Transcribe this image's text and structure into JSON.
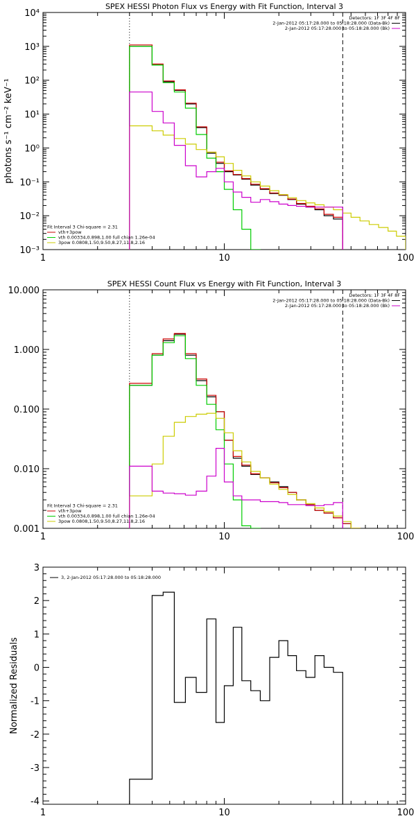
{
  "chart_data": [
    {
      "type": "line",
      "title": "SPEX HESSI Photon Flux vs Energy with Fit Function, Interval 3",
      "ylabel": "photons s⁻¹ cm⁻² keV⁻¹",
      "xlabel": "",
      "xscale": "log",
      "yscale": "log",
      "xlim": [
        1,
        100
      ],
      "ylim": [
        0.001,
        10000
      ],
      "x_ticks": [
        {
          "v": 1,
          "label": "1"
        },
        {
          "v": 10,
          "label": "10"
        },
        {
          "v": 100,
          "label": "100"
        }
      ],
      "y_ticks": [
        {
          "v": 0.001,
          "label": "10⁻³"
        },
        {
          "v": 0.01,
          "label": "10⁻²"
        },
        {
          "v": 0.1,
          "label": "10⁻¹"
        },
        {
          "v": 1,
          "label": "10⁰"
        },
        {
          "v": 10,
          "label": "10¹"
        },
        {
          "v": 100,
          "label": "10²"
        },
        {
          "v": 1000,
          "label": "10³"
        },
        {
          "v": 10000,
          "label": "10⁴"
        }
      ],
      "vlines": [
        {
          "x": 3.0,
          "style": "dotted"
        },
        {
          "x": 45,
          "style": "dashed"
        }
      ],
      "legend_topright": [
        {
          "text": "Detectors: 1F 3F 4F 8F",
          "color": ""
        },
        {
          "text": "2-Jan-2012 05:17:28.000 to 05:18:28.000 (Data-Bk)",
          "color": "#000000"
        },
        {
          "text": "2-Jan-2012 05:17:28.000 to 05:18:28.000 (Bk)",
          "color": "#cc00cc"
        }
      ],
      "legend_bottomleft": [
        {
          "text": "Fit Interval 3   Chi-square = 2.31",
          "color": ""
        },
        {
          "text": "vth+3pow",
          "color": "#cc0000"
        },
        {
          "text": "vth 0.00334,0.898,1.00   full chian 1.26e-04",
          "color": "#00cc00"
        },
        {
          "text": "3pow 0.0808,1.50,9.50,8.27,11.8,2.16",
          "color": "#cccc00"
        }
      ],
      "series": [
        {
          "color": "#000000",
          "edges": [
            3.0,
            3.4,
            4.0,
            4.6,
            5.3,
            6.1,
            7.0,
            8.0,
            9.0,
            10.0,
            11.2,
            12.5,
            14.0,
            15.8,
            17.8,
            20.0,
            22.4,
            25.0,
            28.2,
            31.6,
            35.5,
            40.0,
            45.0
          ],
          "values": [
            1000,
            1000,
            280,
            90,
            50,
            20,
            4,
            0.7,
            0.35,
            0.2,
            0.16,
            0.12,
            0.08,
            0.06,
            0.045,
            0.04,
            0.03,
            0.022,
            0.018,
            0.015,
            0.01,
            0.008
          ]
        },
        {
          "color": "#cc0000",
          "edges": [
            3.0,
            3.4,
            4.0,
            4.6,
            5.3,
            6.1,
            7.0,
            8.0,
            9.0,
            10.0,
            11.2,
            12.5,
            14.0,
            15.8,
            17.8,
            20.0,
            22.4,
            25.0,
            28.2,
            31.6,
            35.5,
            40.0,
            45.0
          ],
          "values": [
            1100,
            1100,
            300,
            95,
            52,
            21,
            4.2,
            0.75,
            0.38,
            0.21,
            0.165,
            0.125,
            0.085,
            0.063,
            0.047,
            0.041,
            0.031,
            0.023,
            0.019,
            0.016,
            0.011,
            0.009
          ]
        },
        {
          "color": "#00cc00",
          "edges": [
            3.0,
            3.4,
            4.0,
            4.6,
            5.3,
            6.1,
            7.0,
            8.0,
            9.0,
            10.0,
            11.2,
            12.5,
            14.0,
            15.8
          ],
          "values": [
            1000,
            1000,
            280,
            85,
            45,
            15,
            2.5,
            0.5,
            0.2,
            0.06,
            0.015,
            0.004,
            0.0008
          ]
        },
        {
          "color": "#cccc00",
          "edges": [
            3.0,
            3.4,
            4.0,
            4.6,
            5.3,
            6.1,
            7.0,
            8.0,
            9.0,
            10.0,
            11.2,
            12.5,
            14.0,
            15.8,
            17.8,
            20.0,
            22.4,
            25.0,
            28.2,
            31.6,
            35.5,
            40.0,
            45.0,
            50.0,
            56.0,
            63.0,
            71.0,
            80.0,
            89.0,
            100.0
          ],
          "values": [
            4.5,
            4.5,
            3.2,
            2.4,
            1.9,
            1.3,
            0.9,
            0.75,
            0.55,
            0.35,
            0.22,
            0.15,
            0.1,
            0.075,
            0.055,
            0.042,
            0.034,
            0.028,
            0.024,
            0.021,
            0.018,
            0.015,
            0.012,
            0.009,
            0.007,
            0.0055,
            0.0045,
            0.0035,
            0.0025
          ]
        },
        {
          "color": "#cc00cc",
          "edges": [
            3.0,
            3.4,
            4.0,
            4.6,
            5.3,
            6.1,
            7.0,
            8.0,
            9.0,
            10.0,
            11.2,
            12.5,
            14.0,
            15.8,
            17.8,
            20.0,
            22.4,
            25.0,
            28.2,
            31.6,
            35.5,
            40.0,
            45.0
          ],
          "values": [
            45,
            45,
            12,
            5.5,
            1.2,
            0.3,
            0.14,
            0.2,
            0.25,
            0.1,
            0.05,
            0.035,
            0.025,
            0.03,
            0.026,
            0.022,
            0.02,
            0.019,
            0.018,
            0.018,
            0.018,
            0.018
          ]
        }
      ]
    },
    {
      "type": "line",
      "title": "SPEX HESSI Count Flux vs Energy with Fit Function, Interval 3",
      "ylabel": "",
      "xlabel": "",
      "xscale": "log",
      "yscale": "log",
      "xlim": [
        1,
        100
      ],
      "ylim": [
        0.001,
        10
      ],
      "x_ticks": [
        {
          "v": 1,
          "label": "1"
        },
        {
          "v": 10,
          "label": "10"
        },
        {
          "v": 100,
          "label": "100"
        }
      ],
      "y_ticks": [
        {
          "v": 0.001,
          "label": "0.001"
        },
        {
          "v": 0.01,
          "label": "0.010"
        },
        {
          "v": 0.1,
          "label": "0.100"
        },
        {
          "v": 1,
          "label": "1.000"
        },
        {
          "v": 10,
          "label": "10.000"
        }
      ],
      "vlines": [
        {
          "x": 3.0,
          "style": "dotted"
        },
        {
          "x": 45,
          "style": "dashed"
        }
      ],
      "legend_topright": [
        {
          "text": "Detectors: 1F 3F 4F 8F",
          "color": ""
        },
        {
          "text": "2-Jan-2012 05:17:28.000 to 05:18:28.000 (Data-Bk)",
          "color": "#000000"
        },
        {
          "text": "2-Jan-2012 05:17:28.000 to 05:18:28.000 (Bk)",
          "color": "#cc00cc"
        }
      ],
      "legend_bottomleft": [
        {
          "text": "Fit Interval 3   Chi-square = 2.31",
          "color": ""
        },
        {
          "text": "vth+3pow",
          "color": "#cc0000"
        },
        {
          "text": "vth 0.00334,0.898,1.00   full chian 1.26e-04",
          "color": "#00cc00"
        },
        {
          "text": "3pow 0.0808,1.50,9.50,8.27,11.8,2.16",
          "color": "#cccc00"
        }
      ],
      "series": [
        {
          "color": "#000000",
          "edges": [
            3.0,
            3.4,
            4.0,
            4.6,
            5.3,
            6.1,
            7.0,
            8.0,
            9.0,
            10.0,
            11.2,
            12.5,
            14.0,
            15.8,
            17.8,
            20.0,
            22.4,
            25.0,
            28.2,
            31.6,
            35.5,
            40.0,
            45.0,
            50.0,
            56.0
          ],
          "values": [
            0.25,
            0.25,
            0.8,
            1.4,
            1.8,
            0.8,
            0.3,
            0.16,
            0.09,
            0.03,
            0.015,
            0.011,
            0.008,
            0.007,
            0.006,
            0.005,
            0.004,
            0.003,
            0.0025,
            0.002,
            0.0018,
            0.0015,
            0.0012,
            0.001
          ]
        },
        {
          "color": "#cc0000",
          "edges": [
            3.0,
            3.4,
            4.0,
            4.6,
            5.3,
            6.1,
            7.0,
            8.0,
            9.0,
            10.0,
            11.2,
            12.5,
            14.0,
            15.8,
            17.8,
            20.0,
            22.4,
            25.0,
            28.2,
            31.6,
            35.5,
            40.0,
            45.0,
            50.0,
            56.0
          ],
          "values": [
            0.27,
            0.27,
            0.85,
            1.5,
            1.85,
            0.85,
            0.32,
            0.17,
            0.09,
            0.03,
            0.016,
            0.0115,
            0.0082,
            0.007,
            0.0058,
            0.0048,
            0.004,
            0.003,
            0.0025,
            0.002,
            0.0018,
            0.0015,
            0.0012,
            0.001
          ]
        },
        {
          "color": "#00cc00",
          "edges": [
            3.0,
            3.4,
            4.0,
            4.6,
            5.3,
            6.1,
            7.0,
            8.0,
            9.0,
            10.0,
            11.2,
            12.5,
            14.0,
            15.8
          ],
          "values": [
            0.25,
            0.25,
            0.8,
            1.3,
            1.7,
            0.7,
            0.25,
            0.12,
            0.045,
            0.012,
            0.003,
            0.0011,
            0.0005
          ]
        },
        {
          "color": "#cccc00",
          "edges": [
            3.0,
            3.4,
            4.0,
            4.6,
            5.3,
            6.1,
            7.0,
            8.0,
            9.0,
            10.0,
            11.2,
            12.5,
            14.0,
            15.8,
            17.8,
            20.0,
            22.4,
            25.0,
            28.2,
            31.6,
            35.5,
            40.0,
            45.0,
            50.0,
            56.0
          ],
          "values": [
            0.0035,
            0.0035,
            0.012,
            0.035,
            0.06,
            0.075,
            0.082,
            0.085,
            0.07,
            0.04,
            0.02,
            0.013,
            0.009,
            0.007,
            0.0055,
            0.0045,
            0.0037,
            0.003,
            0.0026,
            0.0022,
            0.0019,
            0.0016,
            0.0013,
            0.001
          ]
        },
        {
          "color": "#cc00cc",
          "edges": [
            3.0,
            3.4,
            4.0,
            4.6,
            5.3,
            6.1,
            7.0,
            8.0,
            9.0,
            10.0,
            11.2,
            12.5,
            14.0,
            15.8,
            17.8,
            20.0,
            22.4,
            25.0,
            28.2,
            31.6,
            35.5,
            40.0,
            45.0
          ],
          "values": [
            0.011,
            0.011,
            0.0042,
            0.0039,
            0.0038,
            0.0036,
            0.0042,
            0.0075,
            0.022,
            0.006,
            0.0035,
            0.003,
            0.003,
            0.0028,
            0.0028,
            0.0027,
            0.0025,
            0.0025,
            0.0024,
            0.0024,
            0.0025,
            0.0027
          ]
        }
      ]
    },
    {
      "type": "line",
      "title": "",
      "ylabel": "Normalized Residuals",
      "xlabel": "",
      "xscale": "log",
      "yscale": "linear",
      "xlim": [
        1,
        100
      ],
      "ylim": [
        -4.1,
        3.0
      ],
      "x_ticks": [
        {
          "v": 1,
          "label": "1"
        },
        {
          "v": 10,
          "label": "10"
        },
        {
          "v": 100,
          "label": "100"
        }
      ],
      "y_ticks": [
        {
          "v": -4,
          "label": "-4"
        },
        {
          "v": -3,
          "label": "-3"
        },
        {
          "v": -2,
          "label": "-2"
        },
        {
          "v": -1,
          "label": "-1"
        },
        {
          "v": 0,
          "label": "0"
        },
        {
          "v": 1,
          "label": "1"
        },
        {
          "v": 2,
          "label": "2"
        },
        {
          "v": 3,
          "label": "3"
        }
      ],
      "legend_topleft": [
        {
          "text": "3,  2-Jan-2012 05:17:28.000 to 05:18:28.000",
          "color": "#000000"
        }
      ],
      "series": [
        {
          "color": "#000000",
          "edges": [
            3.0,
            4.0,
            4.6,
            5.3,
            6.1,
            7.0,
            8.0,
            9.0,
            10.0,
            11.2,
            12.5,
            14.0,
            15.8,
            17.8,
            20.0,
            22.4,
            25.0,
            28.2,
            31.6,
            35.5,
            40.0,
            45.0
          ],
          "values": [
            -3.35,
            2.15,
            2.25,
            -1.05,
            -0.3,
            -0.75,
            1.45,
            -1.65,
            -0.55,
            1.2,
            -0.4,
            -0.7,
            -1.0,
            0.3,
            0.8,
            0.35,
            -0.1,
            -0.3,
            0.35,
            0.0,
            -0.15
          ],
          "drop_to": -4.1
        }
      ]
    }
  ]
}
